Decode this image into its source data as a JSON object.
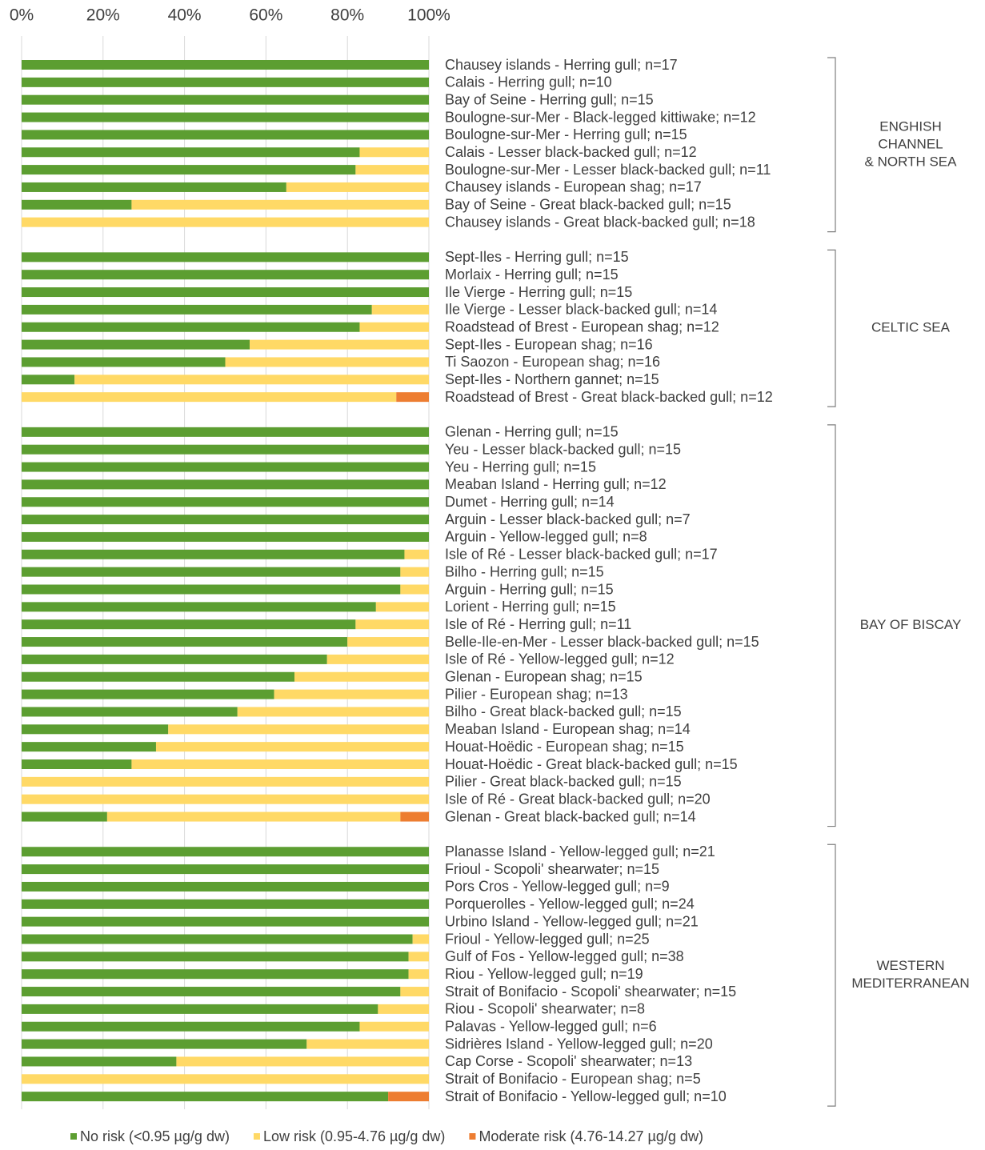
{
  "chart_data": {
    "type": "stacked-bar-horizontal",
    "categories": [
      "Chausey islands - Herring gull; n=17",
      "Calais - Herring gull; n=10",
      "Bay of Seine - Herring gull; n=15",
      "Boulogne-sur-Mer - Black-legged kittiwake; n=12",
      "Boulogne-sur-Mer - Herring gull; n=15",
      "Calais - Lesser black-backed gull; n=12",
      "Boulogne-sur-Mer - Lesser black-backed gull; n=11",
      "Chausey islands - European shag; n=17",
      "Bay of Seine - Great black-backed gull; n=15",
      "Chausey islands - Great black-backed gull; n=18",
      null,
      "Sept-Iles - Herring gull; n=15",
      "Morlaix - Herring gull; n=15",
      "Ile Vierge - Herring gull; n=15",
      "Ile Vierge - Lesser black-backed gull; n=14",
      "Roadstead of Brest - European shag; n=12",
      "Sept-Iles - European shag; n=16",
      "Ti Saozon - European shag; n=16",
      "Sept-Iles - Northern gannet; n=15",
      "Roadstead of Brest - Great black-backed gull; n=12",
      null,
      "Glenan - Herring gull; n=15",
      "Yeu - Lesser black-backed gull; n=15",
      "Yeu - Herring gull; n=15",
      "Meaban Island - Herring gull; n=12",
      "Dumet - Herring gull; n=14",
      "Arguin - Lesser black-backed gull; n=7",
      "Arguin - Yellow-legged gull; n=8",
      "Isle of Ré - Lesser black-backed gull; n=17",
      "Bilho - Herring gull; n=15",
      "Arguin - Herring gull; n=15",
      "Lorient - Herring gull; n=15",
      "Isle of Ré - Herring gull; n=11",
      "Belle-Ile-en-Mer - Lesser black-backed gull; n=15",
      "Isle of Ré - Yellow-legged gull; n=12",
      "Glenan - European shag; n=15",
      "Pilier - European shag; n=13",
      "Bilho - Great black-backed gull; n=15",
      "Meaban Island - European shag; n=14",
      "Houat-Hoëdic - European shag; n=15",
      "Houat-Hoëdic - Great black-backed gull; n=15",
      "Pilier - Great black-backed gull; n=15",
      "Isle of Ré - Great black-backed gull; n=20",
      "Glenan - Great black-backed gull; n=14",
      null,
      "Planasse Island - Yellow-legged gull; n=21",
      "Frioul - Scopoli' shearwater; n=15",
      "Pors Cros - Yellow-legged gull; n=9",
      "Porquerolles - Yellow-legged gull; n=24",
      "Urbino Island - Yellow-legged gull; n=21",
      "Frioul - Yellow-legged gull; n=25",
      "Gulf of Fos - Yellow-legged gull; n=38",
      "Riou - Yellow-legged gull; n=19",
      "Strait of Bonifacio - Scopoli' shearwater; n=15",
      "Riou - Scopoli' shearwater; n=8",
      "Palavas - Yellow-legged gull; n=6",
      "Sidrières Island - Yellow-legged gull; n=20",
      "Cap Corse - Scopoli' shearwater; n=13",
      "Strait of Bonifacio - European shag; n=5",
      "Strait of Bonifacio - Yellow-legged gull; n=10"
    ],
    "series": [
      {
        "name": "No risk (<0.95 µg/g dw)",
        "color": "#5c9e31",
        "values": [
          100,
          100,
          100,
          100,
          100,
          83,
          82,
          65,
          27,
          0,
          null,
          100,
          100,
          100,
          86,
          83,
          56,
          50,
          13,
          0,
          null,
          100,
          100,
          100,
          100,
          100,
          100,
          100,
          94,
          93,
          93,
          87,
          82,
          80,
          75,
          67,
          62,
          53,
          36,
          33,
          27,
          0,
          0,
          21,
          null,
          100,
          100,
          100,
          100,
          100,
          96,
          95,
          95,
          93,
          87.5,
          83,
          70,
          38,
          0,
          90
        ]
      },
      {
        "name": "Low risk (0.95-4.76 µg/g dw)",
        "color": "#ffd966",
        "values": [
          0,
          0,
          0,
          0,
          0,
          17,
          18,
          35,
          73,
          100,
          null,
          0,
          0,
          0,
          14,
          17,
          44,
          50,
          87,
          92,
          null,
          0,
          0,
          0,
          0,
          0,
          0,
          0,
          6,
          7,
          7,
          13,
          18,
          20,
          25,
          33,
          38,
          47,
          64,
          67,
          73,
          100,
          100,
          72,
          null,
          0,
          0,
          0,
          0,
          0,
          4,
          5,
          5,
          7,
          12.5,
          17,
          30,
          62,
          100,
          0
        ]
      },
      {
        "name": "Moderate risk (4.76-14.27 µg/g dw)",
        "color": "#ed7d31",
        "values": [
          0,
          0,
          0,
          0,
          0,
          0,
          0,
          0,
          0,
          0,
          null,
          0,
          0,
          0,
          0,
          0,
          0,
          0,
          0,
          8,
          null,
          0,
          0,
          0,
          0,
          0,
          0,
          0,
          0,
          0,
          0,
          0,
          0,
          0,
          0,
          0,
          0,
          0,
          0,
          0,
          0,
          0,
          0,
          7,
          null,
          0,
          0,
          0,
          0,
          0,
          0,
          0,
          0,
          0,
          0,
          0,
          0,
          0,
          0,
          10
        ]
      }
    ],
    "groups": [
      [
        "ENGHISH",
        "CHANNEL",
        "& NORTH SEA"
      ],
      [
        "CELTIC SEA"
      ],
      [
        "BAY OF BISCAY"
      ],
      [
        "WESTERN",
        "MEDITERRANEAN"
      ]
    ],
    "xlim": [
      0,
      100
    ],
    "xticks": [
      {
        "value": 0,
        "label": "0%"
      },
      {
        "value": 20,
        "label": "20%"
      },
      {
        "value": 40,
        "label": "40%"
      },
      {
        "value": 60,
        "label": "60%"
      },
      {
        "value": 80,
        "label": "80%"
      },
      {
        "value": 100,
        "label": "100%"
      }
    ],
    "grid": true,
    "legend": "bottom"
  }
}
